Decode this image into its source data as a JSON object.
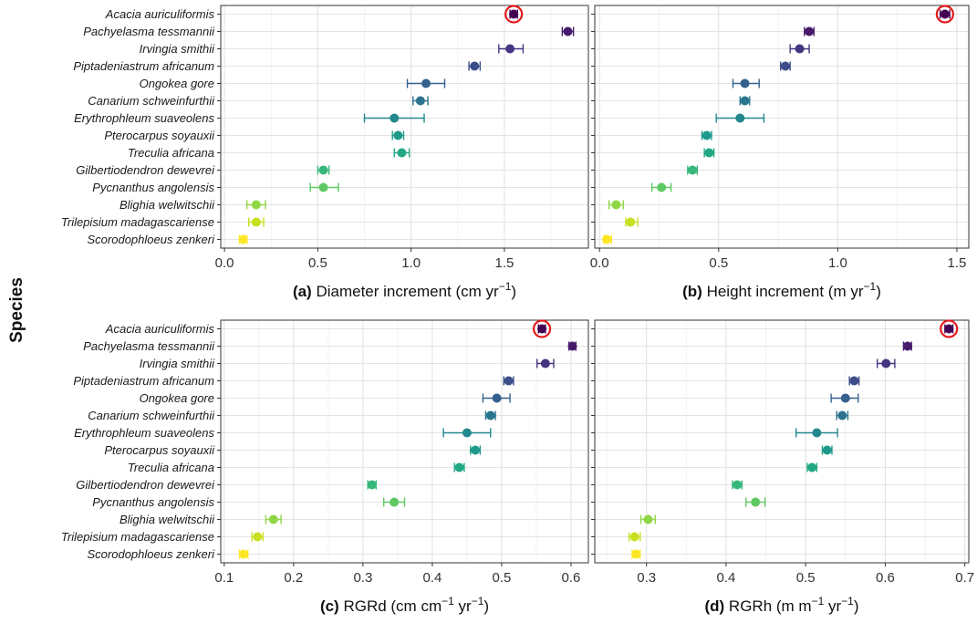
{
  "y_axis_title": "Species",
  "species": [
    "Acacia auriculiformis",
    "Pachyelasma tessmannii",
    "Irvingia smithii",
    "Piptadeniastrum africanum",
    "Ongokea gore",
    "Canarium schweinfurthii",
    "Erythrophleum suaveolens",
    "Pterocarpus soyauxii",
    "Treculia africana",
    "Gilbertiodendron dewevrei",
    "Pycnanthus angolensis",
    "Blighia welwitschii",
    "Trilepisium madagascariense",
    "Scorodophloeus zenkeri"
  ],
  "colors": [
    "#440154",
    "#481a6c",
    "#453581",
    "#3d4d8a",
    "#34618d",
    "#2b748e",
    "#23888e",
    "#1f9a8a",
    "#22a884",
    "#35b779",
    "#5ec962",
    "#8fd744",
    "#c7e020",
    "#fde725"
  ],
  "highlight_color": "#e41a1c",
  "highlight_species": "Acacia auriculiformis",
  "chart_data": [
    {
      "type": "scatter",
      "panel": "a",
      "panel_label": "(a)",
      "xlabel_main": "Diameter increment (cm yr",
      "xlabel_sup": "−1",
      "xlabel_end": ")",
      "xlim": [
        -0.02,
        1.95
      ],
      "xticks": [
        0.0,
        0.5,
        1.0,
        1.5
      ],
      "xtick_labels": [
        "0.0",
        "0.5",
        "1.0",
        "1.5"
      ],
      "values": [
        1.55,
        1.84,
        1.53,
        1.34,
        1.08,
        1.05,
        0.91,
        0.93,
        0.95,
        0.53,
        0.53,
        0.17,
        0.17,
        0.1
      ],
      "lower": [
        1.53,
        1.81,
        1.47,
        1.31,
        0.98,
        1.01,
        0.75,
        0.9,
        0.91,
        0.5,
        0.46,
        0.12,
        0.13,
        0.08
      ],
      "upper": [
        1.57,
        1.87,
        1.6,
        1.37,
        1.18,
        1.09,
        1.07,
        0.96,
        0.99,
        0.56,
        0.61,
        0.22,
        0.21,
        0.12
      ]
    },
    {
      "type": "scatter",
      "panel": "b",
      "panel_label": "(b)",
      "xlabel_main": "Height increment (m yr",
      "xlabel_sup": "−1",
      "xlabel_end": ")",
      "xlim": [
        -0.02,
        1.55
      ],
      "xticks": [
        0.0,
        0.5,
        1.0,
        1.5
      ],
      "xtick_labels": [
        "0.0",
        "0.5",
        "1.0",
        "1.5"
      ],
      "values": [
        1.45,
        0.88,
        0.84,
        0.78,
        0.61,
        0.61,
        0.59,
        0.45,
        0.46,
        0.39,
        0.26,
        0.07,
        0.13,
        0.03
      ],
      "lower": [
        1.43,
        0.86,
        0.8,
        0.76,
        0.56,
        0.59,
        0.49,
        0.43,
        0.44,
        0.37,
        0.22,
        0.04,
        0.11,
        0.02
      ],
      "upper": [
        1.47,
        0.9,
        0.88,
        0.8,
        0.67,
        0.63,
        0.69,
        0.47,
        0.48,
        0.41,
        0.3,
        0.1,
        0.16,
        0.05
      ]
    },
    {
      "type": "scatter",
      "panel": "c",
      "panel_label": "(c)",
      "xlabel_main": "RGRd (cm cm",
      "xlabel_sup": "−1",
      "xlabel_mid": " yr",
      "xlabel_sup2": "−1",
      "xlabel_end": ")",
      "xlim": [
        0.095,
        0.625
      ],
      "xticks": [
        0.1,
        0.2,
        0.3,
        0.4,
        0.5,
        0.6
      ],
      "xtick_labels": [
        "0.1",
        "0.2",
        "0.3",
        "0.4",
        "0.5",
        "0.6"
      ],
      "values": [
        0.558,
        0.602,
        0.563,
        0.51,
        0.493,
        0.484,
        0.45,
        0.462,
        0.439,
        0.313,
        0.345,
        0.171,
        0.148,
        0.128
      ],
      "lower": [
        0.553,
        0.597,
        0.551,
        0.503,
        0.473,
        0.477,
        0.416,
        0.455,
        0.432,
        0.307,
        0.33,
        0.16,
        0.14,
        0.122
      ],
      "upper": [
        0.563,
        0.607,
        0.575,
        0.517,
        0.512,
        0.491,
        0.484,
        0.469,
        0.446,
        0.319,
        0.36,
        0.182,
        0.156,
        0.134
      ]
    },
    {
      "type": "scatter",
      "panel": "d",
      "panel_label": "(d)",
      "xlabel_main": "RGRh (m m",
      "xlabel_sup": "−1",
      "xlabel_mid": " yr",
      "xlabel_sup2": "−1",
      "xlabel_end": ")",
      "xlim": [
        0.235,
        0.705
      ],
      "xticks": [
        0.3,
        0.4,
        0.5,
        0.6,
        0.7
      ],
      "xtick_labels": [
        "0.3",
        "0.4",
        "0.5",
        "0.6",
        "0.7"
      ],
      "values": [
        0.68,
        0.628,
        0.601,
        0.561,
        0.55,
        0.546,
        0.514,
        0.527,
        0.508,
        0.414,
        0.437,
        0.302,
        0.285,
        0.287
      ],
      "lower": [
        0.675,
        0.623,
        0.59,
        0.555,
        0.532,
        0.539,
        0.488,
        0.521,
        0.502,
        0.408,
        0.425,
        0.293,
        0.278,
        0.282
      ],
      "upper": [
        0.685,
        0.633,
        0.612,
        0.567,
        0.566,
        0.553,
        0.54,
        0.533,
        0.514,
        0.42,
        0.449,
        0.311,
        0.292,
        0.292
      ]
    }
  ]
}
